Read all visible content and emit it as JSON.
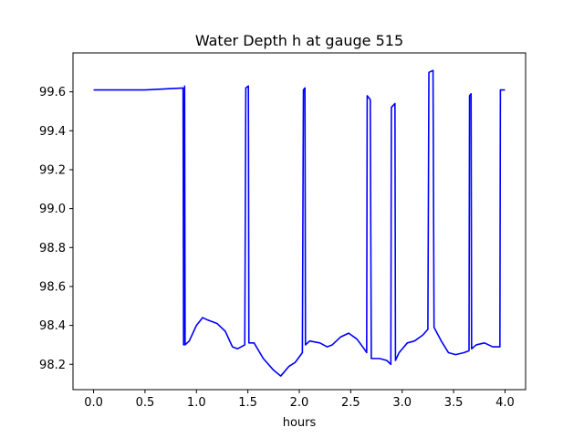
{
  "chart_data": {
    "type": "line",
    "title": "Water Depth h at gauge 515",
    "xlabel": "hours",
    "ylabel": "",
    "xlim": [
      -0.2,
      4.2
    ],
    "ylim": [
      98.07,
      99.8
    ],
    "xticks": [
      0.0,
      0.5,
      1.0,
      1.5,
      2.0,
      2.5,
      3.0,
      3.5,
      4.0
    ],
    "xtick_labels": [
      "0.0",
      "0.5",
      "1.0",
      "1.5",
      "2.0",
      "2.5",
      "3.0",
      "3.5",
      "4.0"
    ],
    "yticks": [
      98.2,
      98.4,
      98.6,
      98.8,
      99.0,
      99.2,
      99.4,
      99.6
    ],
    "ytick_labels": [
      "98.2",
      "98.4",
      "98.6",
      "98.8",
      "99.0",
      "99.2",
      "99.4",
      "99.6"
    ],
    "grid": false,
    "series": [
      {
        "color": "#0000ff",
        "points": [
          [
            0.0,
            99.61
          ],
          [
            0.5,
            99.61
          ],
          [
            0.87,
            99.62
          ],
          [
            0.875,
            98.3
          ],
          [
            0.885,
            99.63
          ],
          [
            0.89,
            98.3
          ],
          [
            0.93,
            98.32
          ],
          [
            1.0,
            98.4
          ],
          [
            1.06,
            98.44
          ],
          [
            1.1,
            98.43
          ],
          [
            1.2,
            98.41
          ],
          [
            1.28,
            98.37
          ],
          [
            1.35,
            98.29
          ],
          [
            1.4,
            98.28
          ],
          [
            1.47,
            98.3
          ],
          [
            1.48,
            99.62
          ],
          [
            1.505,
            99.63
          ],
          [
            1.51,
            98.31
          ],
          [
            1.56,
            98.31
          ],
          [
            1.65,
            98.23
          ],
          [
            1.75,
            98.17
          ],
          [
            1.82,
            98.14
          ],
          [
            1.9,
            98.19
          ],
          [
            1.96,
            98.21
          ],
          [
            2.03,
            98.26
          ],
          [
            2.04,
            99.61
          ],
          [
            2.055,
            99.62
          ],
          [
            2.06,
            98.3
          ],
          [
            2.1,
            98.32
          ],
          [
            2.2,
            98.31
          ],
          [
            2.27,
            98.29
          ],
          [
            2.32,
            98.3
          ],
          [
            2.4,
            98.34
          ],
          [
            2.48,
            98.36
          ],
          [
            2.56,
            98.33
          ],
          [
            2.63,
            98.28
          ],
          [
            2.655,
            98.26
          ],
          [
            2.66,
            99.58
          ],
          [
            2.69,
            99.56
          ],
          [
            2.7,
            98.23
          ],
          [
            2.78,
            98.23
          ],
          [
            2.85,
            98.22
          ],
          [
            2.89,
            98.2
          ],
          [
            2.895,
            99.52
          ],
          [
            2.93,
            99.54
          ],
          [
            2.935,
            98.22
          ],
          [
            2.97,
            98.26
          ],
          [
            3.05,
            98.31
          ],
          [
            3.12,
            98.32
          ],
          [
            3.2,
            98.35
          ],
          [
            3.25,
            98.38
          ],
          [
            3.26,
            99.7
          ],
          [
            3.3,
            99.71
          ],
          [
            3.31,
            98.39
          ],
          [
            3.38,
            98.32
          ],
          [
            3.45,
            98.26
          ],
          [
            3.52,
            98.25
          ],
          [
            3.6,
            98.26
          ],
          [
            3.65,
            98.27
          ],
          [
            3.655,
            99.58
          ],
          [
            3.67,
            99.59
          ],
          [
            3.675,
            98.28
          ],
          [
            3.72,
            98.3
          ],
          [
            3.8,
            98.31
          ],
          [
            3.88,
            98.29
          ],
          [
            3.95,
            98.29
          ],
          [
            3.955,
            99.61
          ],
          [
            4.0,
            99.61
          ]
        ]
      }
    ]
  }
}
